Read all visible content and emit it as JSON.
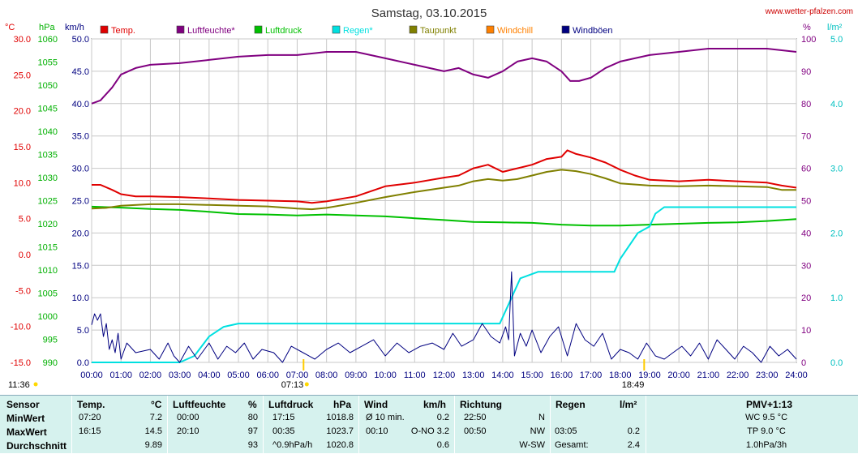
{
  "title": "Samstag, 03.10.2015",
  "watermark": "www.wetter-pfalzen.com",
  "units": {
    "temp": "°C",
    "pressure": "hPa",
    "wind": "km/h",
    "humidity": "%",
    "rain": "l/m²"
  },
  "colors": {
    "temp": "#e00000",
    "humidity": "#800080",
    "pressure": "#00c000",
    "rain": "#00e0e0",
    "dewpoint": "#808000",
    "windchill": "#ff8000",
    "gust": "#000080",
    "stats_bg": "#d6f2ee"
  },
  "legend": [
    {
      "label": "Temp.",
      "color": "#e00000"
    },
    {
      "label": "Luftfeuchte*",
      "color": "#800080"
    },
    {
      "label": "Luftdruck",
      "color": "#00c000"
    },
    {
      "label": "Regen*",
      "color": "#00e0e0"
    },
    {
      "label": "Taupunkt",
      "color": "#808000"
    },
    {
      "label": "Windchill",
      "color": "#ff8000"
    },
    {
      "label": "Windböen",
      "color": "#000080"
    }
  ],
  "axes": {
    "temp_ticks": [
      "30.0",
      "25.0",
      "20.0",
      "15.0",
      "10.0",
      "5.0",
      "0.0",
      "-5.0",
      "-10.0",
      "-15.0"
    ],
    "pressure_ticks": [
      "1060",
      "1055",
      "1050",
      "1045",
      "1040",
      "1035",
      "1030",
      "1025",
      "1020",
      "1015",
      "1010",
      "1005",
      "1000",
      "995",
      "990"
    ],
    "wind_ticks": [
      "50.0",
      "45.0",
      "40.0",
      "35.0",
      "30.0",
      "25.0",
      "20.0",
      "15.0",
      "10.0",
      "5.0",
      "0.0"
    ],
    "humidity_ticks": [
      "100",
      "90",
      "80",
      "70",
      "60",
      "50",
      "40",
      "30",
      "20",
      "10",
      "0"
    ],
    "rain_ticks": [
      "5.0",
      "4.0",
      "3.0",
      "2.0",
      "1.0",
      "0.0"
    ],
    "x_ticks": [
      "00:00",
      "01:00",
      "02:00",
      "03:00",
      "04:00",
      "05:00",
      "06:00",
      "07:00",
      "08:00",
      "09:00",
      "10:00",
      "11:00",
      "12:00",
      "13:00",
      "14:00",
      "15:00",
      "16:00",
      "17:00",
      "18:00",
      "19:00",
      "20:00",
      "21:00",
      "22:00",
      "23:00",
      "24:00"
    ],
    "moon_time": "11:36",
    "sunrise": "07:13",
    "sunset": "18:49"
  },
  "chart_data": {
    "type": "line",
    "x_unit": "hour of day",
    "xlim": [
      0,
      24
    ],
    "series": [
      {
        "name": "Temp.",
        "axis": "°C",
        "ylim": [
          -15,
          30
        ],
        "x": [
          0,
          0.3,
          0.7,
          1,
          1.5,
          2,
          3,
          4,
          5,
          6,
          7,
          7.5,
          8,
          9,
          10,
          11,
          12,
          12.5,
          13,
          13.5,
          14,
          14.5,
          15,
          15.5,
          16,
          16.2,
          16.5,
          17,
          17.5,
          18,
          18.5,
          19,
          20,
          21,
          22,
          23,
          23.5,
          24
        ],
        "y": [
          9.7,
          9.7,
          9.0,
          8.4,
          8.1,
          8.1,
          8.0,
          7.8,
          7.6,
          7.5,
          7.4,
          7.2,
          7.4,
          8.1,
          9.5,
          10.0,
          10.7,
          11.0,
          12.0,
          12.5,
          11.5,
          12.0,
          12.5,
          13.3,
          13.6,
          14.5,
          14.0,
          13.5,
          12.8,
          11.8,
          11.0,
          10.4,
          10.2,
          10.4,
          10.2,
          10.0,
          9.6,
          9.3
        ]
      },
      {
        "name": "Luftfeuchte*",
        "axis": "%",
        "ylim": [
          0,
          100
        ],
        "x": [
          0,
          0.3,
          0.7,
          1,
          1.5,
          2,
          3,
          4,
          5,
          6,
          7,
          8,
          9,
          10,
          11,
          12,
          12.5,
          13,
          13.5,
          14,
          14.5,
          15,
          15.5,
          16,
          16.3,
          16.6,
          17,
          17.5,
          18,
          19,
          20,
          21,
          22,
          23,
          24
        ],
        "y": [
          80,
          81,
          85,
          89,
          91,
          92,
          92.5,
          93.5,
          94.5,
          95,
          95,
          96,
          96,
          94,
          92,
          90,
          91,
          89,
          88,
          90,
          93,
          94,
          93,
          90,
          87,
          87,
          88,
          91,
          93,
          95,
          96,
          97,
          97,
          97,
          96
        ]
      },
      {
        "name": "Luftdruck",
        "axis": "hPa",
        "ylim": [
          990,
          1060
        ],
        "x": [
          0,
          1,
          2,
          3,
          4,
          5,
          6,
          7,
          8,
          9,
          10,
          11,
          12,
          13,
          14,
          15,
          16,
          17,
          18,
          19,
          20,
          21,
          22,
          23,
          24
        ],
        "y": [
          1023.7,
          1023.5,
          1023.2,
          1023.0,
          1022.6,
          1022.1,
          1022.0,
          1021.8,
          1022.0,
          1021.8,
          1021.6,
          1021.2,
          1020.8,
          1020.4,
          1020.3,
          1020.2,
          1019.8,
          1019.6,
          1019.6,
          1019.8,
          1020.0,
          1020.2,
          1020.3,
          1020.6,
          1021.0
        ]
      },
      {
        "name": "Regen*",
        "axis": "l/m²",
        "ylim": [
          0,
          5
        ],
        "x": [
          0,
          3,
          3.5,
          4,
          4.5,
          5,
          6,
          7,
          8,
          9,
          10,
          11,
          12,
          13,
          13.9,
          14.2,
          14.6,
          14.9,
          15.2,
          16,
          17,
          17.8,
          18,
          18.3,
          18.6,
          19,
          19.2,
          19.5,
          20,
          21,
          22,
          23,
          24
        ],
        "y": [
          0,
          0,
          0.1,
          0.4,
          0.55,
          0.6,
          0.6,
          0.6,
          0.6,
          0.6,
          0.6,
          0.6,
          0.6,
          0.6,
          0.6,
          0.9,
          1.3,
          1.35,
          1.4,
          1.4,
          1.4,
          1.4,
          1.6,
          1.8,
          2.0,
          2.1,
          2.3,
          2.4,
          2.4,
          2.4,
          2.4,
          2.4,
          2.4
        ]
      },
      {
        "name": "Taupunkt",
        "axis": "°C",
        "ylim": [
          -15,
          30
        ],
        "x": [
          0,
          0.5,
          1,
          2,
          3,
          4,
          5,
          6,
          7,
          7.5,
          8,
          9,
          10,
          11,
          12,
          12.5,
          13,
          13.5,
          14,
          14.5,
          15,
          15.5,
          16,
          16.5,
          17,
          17.5,
          18,
          19,
          20,
          21,
          22,
          23,
          23.5,
          24
        ],
        "y": [
          6.4,
          6.5,
          6.8,
          7.0,
          7.0,
          6.9,
          6.8,
          6.7,
          6.4,
          6.3,
          6.5,
          7.2,
          8.0,
          8.7,
          9.3,
          9.6,
          10.2,
          10.5,
          10.3,
          10.5,
          11.0,
          11.5,
          11.8,
          11.6,
          11.2,
          10.6,
          9.9,
          9.6,
          9.5,
          9.6,
          9.5,
          9.4,
          9.0,
          9.0
        ]
      },
      {
        "name": "Windböen",
        "axis": "km/h",
        "ylim": [
          0,
          50
        ],
        "x": [
          0,
          0.1,
          0.2,
          0.3,
          0.4,
          0.5,
          0.6,
          0.7,
          0.8,
          0.9,
          1.0,
          1.2,
          1.5,
          2.0,
          2.3,
          2.6,
          2.8,
          3.0,
          3.3,
          3.6,
          4.0,
          4.3,
          4.6,
          4.9,
          5.2,
          5.5,
          5.8,
          6.2,
          6.5,
          6.8,
          7.2,
          7.6,
          8.0,
          8.4,
          8.8,
          9.2,
          9.6,
          10.0,
          10.4,
          10.8,
          11.2,
          11.6,
          12.0,
          12.3,
          12.6,
          13.0,
          13.3,
          13.6,
          13.9,
          14.1,
          14.2,
          14.3,
          14.4,
          14.6,
          14.8,
          15.0,
          15.3,
          15.6,
          15.9,
          16.2,
          16.5,
          16.8,
          17.1,
          17.4,
          17.7,
          18.0,
          18.3,
          18.6,
          18.9,
          19.2,
          19.5,
          19.8,
          20.1,
          20.4,
          20.7,
          21.0,
          21.3,
          21.6,
          21.9,
          22.2,
          22.5,
          22.8,
          23.1,
          23.4,
          23.7,
          24.0
        ],
        "y": [
          5.8,
          7.5,
          6.5,
          7.5,
          4.0,
          6.0,
          2.0,
          3.5,
          1.5,
          4.5,
          0.5,
          3.0,
          1.5,
          2.0,
          0.5,
          3.0,
          1.0,
          0.0,
          2.5,
          0.5,
          3.0,
          0.5,
          2.5,
          1.5,
          3.0,
          0.5,
          2.0,
          1.5,
          0.0,
          2.5,
          1.5,
          0.5,
          2.0,
          3.0,
          1.5,
          2.5,
          3.5,
          1.0,
          3.0,
          1.5,
          2.5,
          3.0,
          2.0,
          4.5,
          2.5,
          3.5,
          6.0,
          4.0,
          3.0,
          5.5,
          3.5,
          14.0,
          1.0,
          4.5,
          2.5,
          5.0,
          1.5,
          4.0,
          5.5,
          1.0,
          6.0,
          3.5,
          2.5,
          4.5,
          0.5,
          2.0,
          1.5,
          0.5,
          3.0,
          1.0,
          0.5,
          1.5,
          2.5,
          1.0,
          3.0,
          0.5,
          3.5,
          2.0,
          0.5,
          2.5,
          1.5,
          0.0,
          2.5,
          1.0,
          2.0,
          0.5
        ]
      }
    ]
  },
  "stats": {
    "headers": {
      "sensor": "Sensor",
      "temp": "Temp.",
      "temp_unit": "°C",
      "hum": "Luftfeuchte",
      "hum_unit": "%",
      "press": "Luftdruck",
      "press_unit": "hPa",
      "wind": "Wind",
      "wind_unit": "km/h",
      "dir": "Richtung",
      "rain": "Regen",
      "rain_unit": "l/m²",
      "pmv": "PMV+1:13"
    },
    "rows": [
      {
        "label": "MinWert",
        "temp_time": "07:20",
        "temp_val": "7.2",
        "hum_time": "00:00",
        "hum_val": "80",
        "press_time": "17:15",
        "press_val": "1018.8",
        "wind_time": "Ø 10 min.",
        "wind_val": "0.2",
        "dir_time": "22:50",
        "dir_val": "N",
        "rain_time": "",
        "rain_val": "",
        "pmv": "WC 9.5 °C"
      },
      {
        "label": "MaxWert",
        "temp_time": "16:15",
        "temp_val": "14.5",
        "hum_time": "20:10",
        "hum_val": "97",
        "press_time": "00:35",
        "press_val": "1023.7",
        "wind_time": "00:10",
        "wind_val": "O-NO 3.2",
        "dir_time": "00:50",
        "dir_val": "NW",
        "rain_time": "03:05",
        "rain_val": "0.2",
        "pmv": "TP 9.0 °C"
      },
      {
        "label": "Durchschnitt",
        "temp_time": "",
        "temp_val": "9.89",
        "hum_time": "",
        "hum_val": "93",
        "press_time": "^0.9hPa/h",
        "press_val": "1020.8",
        "wind_time": "",
        "wind_val": "0.6",
        "dir_time": "",
        "dir_val": "W-SW",
        "rain_time": "Gesamt:",
        "rain_val": "2.4",
        "pmv": "1.0hPa/3h"
      }
    ]
  }
}
